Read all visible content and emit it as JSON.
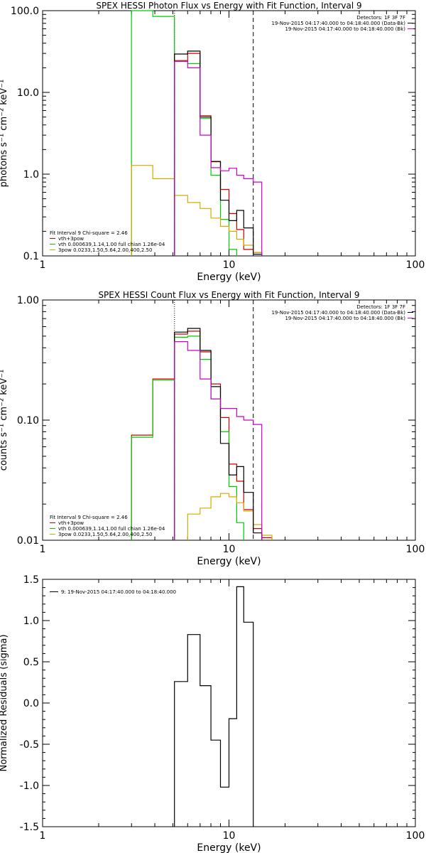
{
  "chart_data": [
    {
      "type": "line",
      "title": "SPEX HESSI Photon Flux vs Energy with Fit Function, Interval 9",
      "xlabel": "Energy (keV)",
      "ylabel": "photons s⁻¹ cm⁻² keV⁻¹",
      "xscale": "log",
      "yscale": "log",
      "xlim": [
        1,
        100
      ],
      "ylim": [
        0.1,
        100
      ],
      "x_ticks": [
        "1",
        "10",
        "100"
      ],
      "y_ticks": [
        "0.1",
        "1.0",
        "10.0",
        "100.0"
      ],
      "vlines": [
        {
          "x": 5.1,
          "style": "dotted"
        },
        {
          "x": 13.5,
          "style": "dashed"
        }
      ],
      "legend_top_right": [
        {
          "text": "Detectors: 1F 3F 7F",
          "color": "#000000"
        },
        {
          "text": "19-Nov-2015 04:17:40.000 to 04:18:40.000 (Data-Bk)",
          "color": "#000000"
        },
        {
          "text": "19-Nov-2015 04:17:40.000 to 04:18:40.000 (Bk)",
          "color": "#cc00cc"
        }
      ],
      "legend_bottom_left": [
        {
          "text": "Fit Interval 9   Chi-square = 2.46",
          "color": "#000000"
        },
        {
          "text": "vth+3pow",
          "color": "#cc0000"
        },
        {
          "text": "vth 0.000639,1.14,1.00  full chian 1.26e-04",
          "color": "#00cc00"
        },
        {
          "text": "3pow 0.0233,1.50,5.64,2.00,400,2.50",
          "color": "#d4aa00"
        }
      ],
      "edges": [
        3.0,
        3.9,
        5.1,
        6.0,
        7.0,
        8.0,
        9.0,
        10.0,
        11.0,
        12.0,
        13.5,
        15.0,
        17.0
      ],
      "series": [
        {
          "name": "vth+3pow",
          "color": "#cc0000",
          "values": [
            null,
            null,
            24.5,
            30.0,
            5.2,
            1.42,
            0.65,
            0.33,
            0.21,
            0.12,
            0.11,
            null
          ]
        },
        {
          "name": "vth",
          "color": "#00cc00",
          "values": [
            100,
            85,
            24.0,
            22.5,
            4.8,
            0.97,
            0.28,
            0.12,
            null,
            null,
            null,
            null
          ]
        },
        {
          "name": "3pow",
          "color": "#d4aa00",
          "values": [
            1.28,
            0.88,
            0.55,
            0.45,
            0.38,
            0.29,
            0.23,
            0.2,
            0.16,
            0.135,
            0.11,
            null
          ]
        },
        {
          "name": "Data-Bk",
          "color": "#000000",
          "values": [
            null,
            null,
            29.5,
            32.0,
            5.0,
            1.43,
            0.48,
            0.27,
            0.36,
            0.22,
            0.105,
            null
          ]
        },
        {
          "name": "Bk",
          "color": "#cc00cc",
          "values": [
            null,
            null,
            24.0,
            20.0,
            3.0,
            1.2,
            1.1,
            1.18,
            0.97,
            0.88,
            0.8,
            null
          ]
        }
      ]
    },
    {
      "type": "line",
      "title": "SPEX HESSI Count Flux vs Energy with Fit Function, Interval 9",
      "xlabel": "Energy (keV)",
      "ylabel": "counts s⁻¹ cm⁻² keV⁻¹",
      "xscale": "log",
      "yscale": "log",
      "xlim": [
        1,
        100
      ],
      "ylim": [
        0.01,
        1
      ],
      "x_ticks": [
        "1",
        "10",
        "100"
      ],
      "y_ticks": [
        "0.01",
        "0.10",
        "1.00"
      ],
      "vlines": [
        {
          "x": 5.1,
          "style": "dotted"
        },
        {
          "x": 13.5,
          "style": "dashed"
        }
      ],
      "legend_top_right": [
        {
          "text": "Detectors: 1F 3F 7F",
          "color": "#000000"
        },
        {
          "text": "19-Nov-2015 04:17:40.000 to 04:18:40.000 (Data-Bk)",
          "color": "#000000"
        },
        {
          "text": "19-Nov-2015 04:17:40.000 to 04:18:40.000 (Bk)",
          "color": "#cc00cc"
        }
      ],
      "legend_bottom_left": [
        {
          "text": "Fit Interval 9   Chi-square = 2.46",
          "color": "#000000"
        },
        {
          "text": "vth+3pow",
          "color": "#cc0000"
        },
        {
          "text": "vth 0.000639,1.14,1.00  full chian 1.26e-04",
          "color": "#00cc00"
        },
        {
          "text": "3pow 0.0233,1.50,5.64,2.00,400,2.50",
          "color": "#d4aa00"
        }
      ],
      "edges": [
        3.0,
        3.9,
        5.1,
        6.0,
        7.0,
        8.0,
        9.0,
        10.0,
        11.0,
        12.0,
        13.5,
        15.0,
        17.0
      ],
      "series": [
        {
          "name": "vth+3pow",
          "color": "#cc0000",
          "values": [
            0.075,
            0.22,
            0.52,
            0.55,
            0.37,
            0.2,
            0.105,
            0.043,
            0.031,
            0.018,
            0.0125,
            0.0105
          ]
        },
        {
          "name": "vth",
          "color": "#00cc00",
          "values": [
            0.072,
            0.215,
            0.49,
            0.5,
            0.32,
            0.15,
            0.08,
            0.028,
            0.014,
            null,
            null,
            null
          ]
        },
        {
          "name": "3pow",
          "color": "#d4aa00",
          "values": [
            null,
            null,
            null,
            0.0165,
            0.0185,
            0.023,
            0.0245,
            0.023,
            0.0205,
            0.0175,
            0.0135,
            0.011
          ]
        },
        {
          "name": "Data-Bk",
          "color": "#000000",
          "values": [
            null,
            null,
            0.54,
            0.58,
            0.38,
            0.19,
            0.064,
            0.035,
            0.041,
            0.025,
            0.0115,
            null
          ]
        },
        {
          "name": "Bk",
          "color": "#cc00cc",
          "values": [
            null,
            null,
            0.45,
            0.38,
            0.22,
            0.15,
            0.125,
            0.125,
            0.107,
            0.1,
            0.092,
            null
          ]
        }
      ]
    },
    {
      "type": "line",
      "title": "",
      "xlabel": "Energy (keV)",
      "ylabel": "Normalized Residuals (sigma)",
      "xscale": "log",
      "yscale": "linear",
      "xlim": [
        1,
        100
      ],
      "ylim": [
        -1.5,
        1.5
      ],
      "x_ticks": [
        "1",
        "10",
        "100"
      ],
      "y_ticks": [
        "-1.5",
        "-1.0",
        "-0.5",
        "0.0",
        "0.5",
        "1.0",
        "1.5"
      ],
      "legend_top_left": [
        {
          "text": "9: 19-Nov-2015 04:17:40.000 to 04:18:40.000",
          "color": "#000000"
        }
      ],
      "edges": [
        5.1,
        6.0,
        7.0,
        8.0,
        9.0,
        10.0,
        11.0,
        12.0,
        13.5
      ],
      "series": [
        {
          "name": "",
          "color": "#000000",
          "values": [
            0.26,
            0.83,
            0.21,
            -0.45,
            -1.02,
            -0.19,
            1.41,
            0.98
          ]
        }
      ]
    }
  ]
}
